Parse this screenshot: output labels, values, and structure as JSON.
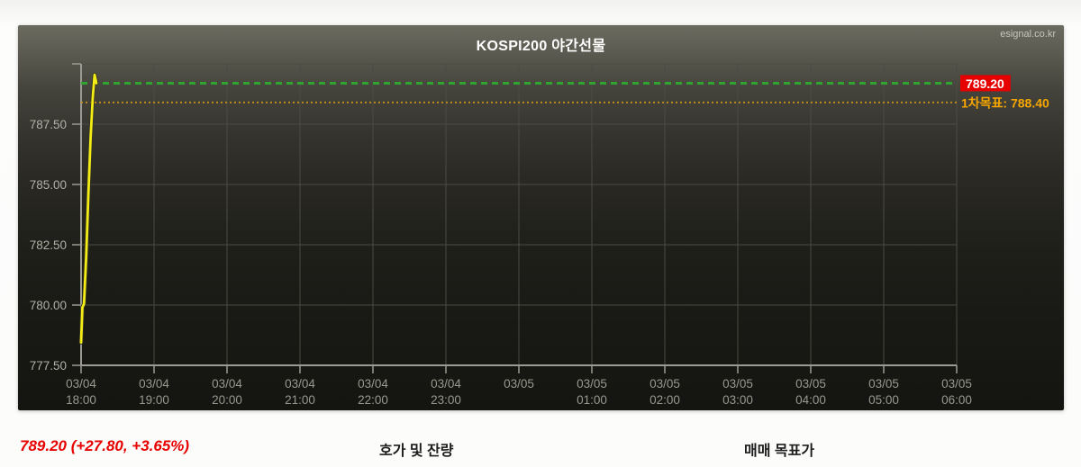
{
  "chart_data": {
    "type": "line",
    "title": "KOSPI200 야간선물",
    "source_watermark": "esignal.co.kr",
    "x_axis": {
      "unit": "hours_from_1800",
      "range": [
        0,
        12
      ],
      "ticks": [
        {
          "hour": 0,
          "date": "03/04",
          "time": "18:00"
        },
        {
          "hour": 1,
          "date": "03/04",
          "time": "19:00"
        },
        {
          "hour": 2,
          "date": "03/04",
          "time": "20:00"
        },
        {
          "hour": 3,
          "date": "03/04",
          "time": "21:00"
        },
        {
          "hour": 4,
          "date": "03/04",
          "time": "22:00"
        },
        {
          "hour": 5,
          "date": "03/04",
          "time": "23:00"
        },
        {
          "hour": 6,
          "date": "03/05",
          "time": ""
        },
        {
          "hour": 7,
          "date": "03/05",
          "time": "01:00"
        },
        {
          "hour": 8,
          "date": "03/05",
          "time": "02:00"
        },
        {
          "hour": 9,
          "date": "03/05",
          "time": "03:00"
        },
        {
          "hour": 10,
          "date": "03/05",
          "time": "04:00"
        },
        {
          "hour": 11,
          "date": "03/05",
          "time": "05:00"
        },
        {
          "hour": 12,
          "date": "03/05",
          "time": "06:00"
        }
      ]
    },
    "y_axis": {
      "min": 777.5,
      "max": 790.0,
      "tick_step": 2.5,
      "ticks": [
        {
          "value": 790.0,
          "label": ""
        },
        {
          "value": 787.5,
          "label": "787.50"
        },
        {
          "value": 785.0,
          "label": "785.00"
        },
        {
          "value": 782.5,
          "label": "782.50"
        },
        {
          "value": 780.0,
          "label": "780.00"
        },
        {
          "value": 777.5,
          "label": "777.50"
        }
      ]
    },
    "series": [
      {
        "name": "KOSPI200 야간선물 가격",
        "color": "#f3ec16",
        "points": [
          [
            0.0,
            778.45
          ],
          [
            0.018,
            779.9
          ],
          [
            0.04,
            780.05
          ],
          [
            0.07,
            782.0
          ],
          [
            0.1,
            784.6
          ],
          [
            0.13,
            786.9
          ],
          [
            0.16,
            788.6
          ],
          [
            0.185,
            789.55
          ],
          [
            0.21,
            789.2
          ]
        ]
      }
    ],
    "reference_lines": [
      {
        "value": 789.2,
        "label": "789.20",
        "line_color": "#2fa52f",
        "line_style": "dashed",
        "label_text_color": "#ffffff",
        "label_bg": "#e60000"
      },
      {
        "value": 788.4,
        "label": "1차목표: 788.40",
        "line_color": "#c08a1d",
        "line_style": "dotted",
        "label_text_color": "#f7a600",
        "label_bg": ""
      }
    ],
    "grid": true,
    "legend": "none"
  },
  "footer": {
    "price_summary": "789.20 (+27.80, +3.65%)",
    "orderbook_header": "호가 및 잔량",
    "targets_header": "매매 목표가"
  },
  "colors": {
    "accent_red": "#e60000",
    "accent_orange": "#f7a600",
    "accent_green": "#2fa52f",
    "series_yellow": "#f3ec16",
    "panel_top": "#6c6b60",
    "panel_bottom": "#141411"
  }
}
